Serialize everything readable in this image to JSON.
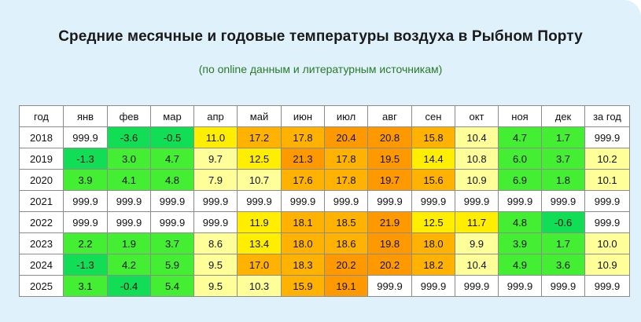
{
  "title": "Средние месячные и годовые температуры воздуха в Рыбном Порту",
  "subtitle": "(по online данным и литературным источникам)",
  "headers": [
    "год",
    "янв",
    "фев",
    "мар",
    "апр",
    "май",
    "июн",
    "июл",
    "авг",
    "сен",
    "окт",
    "ноя",
    "дек",
    "за год"
  ],
  "rows": [
    {
      "year": "2018",
      "values": [
        "999.9",
        "-3.6",
        "-0.5",
        "11.0",
        "17.2",
        "17.8",
        "20.4",
        "20.8",
        "15.8",
        "10.4",
        "4.7",
        "1.7",
        "999.9"
      ]
    },
    {
      "year": "2019",
      "values": [
        "-1.3",
        "3.0",
        "4.7",
        "9.7",
        "12.5",
        "21.3",
        "17.8",
        "19.5",
        "14.4",
        "10.8",
        "6.0",
        "3.7",
        "10.2"
      ]
    },
    {
      "year": "2020",
      "values": [
        "3.9",
        "4.1",
        "4.8",
        "7.9",
        "10.7",
        "17.6",
        "17.8",
        "19.7",
        "15.6",
        "10.9",
        "6.9",
        "1.8",
        "10.1"
      ]
    },
    {
      "year": "2021",
      "values": [
        "999.9",
        "999.9",
        "999.9",
        "999.9",
        "999.9",
        "999.9",
        "999.9",
        "999.9",
        "999.9",
        "999.9",
        "999.9",
        "999.9",
        "999.9"
      ]
    },
    {
      "year": "2022",
      "values": [
        "999.9",
        "999.9",
        "999.9",
        "999.9",
        "11.9",
        "18.1",
        "18.5",
        "21.9",
        "12.5",
        "11.7",
        "4.8",
        "-0.6",
        "999.9"
      ]
    },
    {
      "year": "2023",
      "values": [
        "2.2",
        "1.9",
        "3.7",
        "8.6",
        "13.4",
        "18.0",
        "18.6",
        "19.8",
        "18.0",
        "9.9",
        "3.9",
        "1.7",
        "10.0"
      ]
    },
    {
      "year": "2024",
      "values": [
        "-1.3",
        "4.2",
        "5.9",
        "9.5",
        "17.0",
        "18.3",
        "20.2",
        "20.2",
        "18.2",
        "10.4",
        "4.9",
        "3.6",
        "10.9"
      ]
    },
    {
      "year": "2025",
      "values": [
        "3.1",
        "-0.4",
        "5.4",
        "9.5",
        "10.3",
        "15.9",
        "19.1",
        "999.9",
        "999.9",
        "999.9",
        "999.9",
        "999.9",
        "999.9"
      ]
    }
  ],
  "colors": {
    "panel_bg": "#dff1fb",
    "subtitle": "#2a7a2a",
    "cold": "#11dd55",
    "cool": "#44ee33",
    "mild": "#ffff99",
    "warm": "#ffee00",
    "hot": "#ffb300",
    "hotter": "#ff9900",
    "missing": "#ffffff"
  }
}
